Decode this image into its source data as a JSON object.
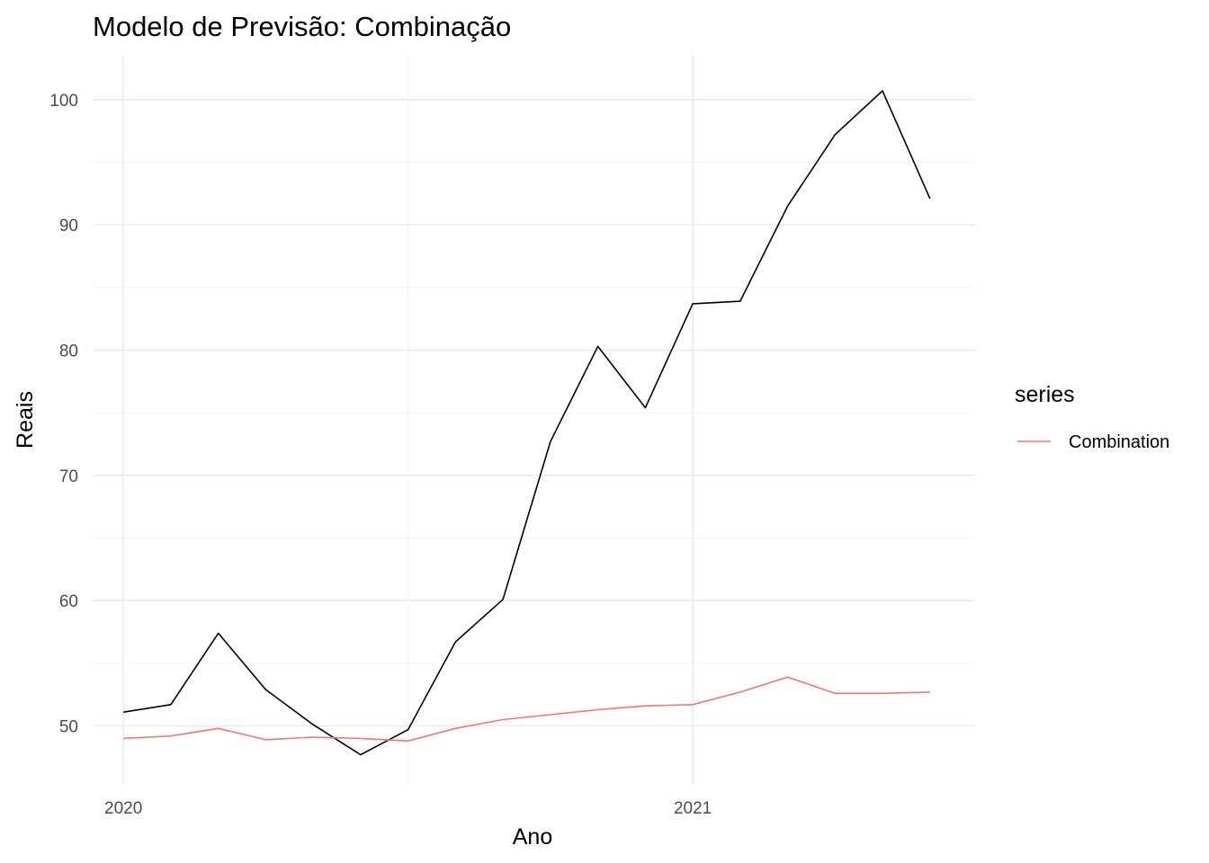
{
  "chart_data": {
    "type": "line",
    "title": "Modelo de Previsão: Combinação",
    "xlabel": "Ano",
    "ylabel": "Reais",
    "xlim": [
      2019.946,
      2021.496
    ],
    "ylim": [
      45.3,
      103.5
    ],
    "x_ticks": [
      {
        "value": 2020,
        "label": "2020"
      },
      {
        "value": 2021,
        "label": "2021"
      }
    ],
    "x_minor": [
      2020.5
    ],
    "y_ticks": [
      50,
      60,
      70,
      80,
      90,
      100
    ],
    "y_minor": [
      55,
      65,
      75,
      85,
      95
    ],
    "grid": true,
    "legend": {
      "title": "series",
      "position": "right"
    },
    "series": [
      {
        "color": "#000000",
        "x": [
          2020,
          2020.0833,
          2020.1667,
          2020.25,
          2020.3333,
          2020.4167,
          2020.5,
          2020.5833,
          2020.6667,
          2020.75,
          2020.8333,
          2020.9167,
          2021,
          2021.0833,
          2021.1667,
          2021.25,
          2021.3333,
          2021.4167
        ],
        "values": [
          51.1,
          51.7,
          57.4,
          52.9,
          50.1,
          47.7,
          49.7,
          56.7,
          60.1,
          72.7,
          80.3,
          75.4,
          83.7,
          83.9,
          91.5,
          97.2,
          100.7,
          92.1
        ]
      },
      {
        "name": "Combination",
        "color": "#f8766d",
        "x": [
          2020,
          2020.0833,
          2020.1667,
          2020.25,
          2020.3333,
          2020.4167,
          2020.5,
          2020.5833,
          2020.6667,
          2020.75,
          2020.8333,
          2020.9167,
          2021,
          2021.0833,
          2021.1667,
          2021.25,
          2021.3333,
          2021.4167
        ],
        "values": [
          49.0,
          49.2,
          49.8,
          48.9,
          49.1,
          49.0,
          48.8,
          49.8,
          50.5,
          50.9,
          51.3,
          51.6,
          51.7,
          52.7,
          53.9,
          52.6,
          52.6,
          52.7
        ]
      }
    ]
  }
}
